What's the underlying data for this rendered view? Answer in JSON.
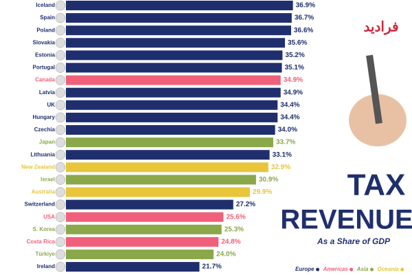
{
  "chart_data": {
    "type": "bar",
    "orientation": "horizontal",
    "title": "TAX",
    "title_line2": "REVENUE",
    "subtitle": "As a Share of GDP",
    "brand": "فرادید",
    "categories": [
      "Iceland",
      "Spain",
      "Poland",
      "Slovakia",
      "Estonia",
      "Portugal",
      "Canada",
      "Latvia",
      "UK",
      "Hungary",
      "Czechia",
      "Japan",
      "Lithuania",
      "New Zealand",
      "Israel",
      "Australia",
      "Switzerland",
      "USA",
      "S. Korea",
      "Costa Rica",
      "Türkiye",
      "Ireland"
    ],
    "values": [
      36.9,
      36.7,
      36.6,
      35.6,
      35.2,
      35.1,
      34.9,
      34.9,
      34.4,
      34.4,
      34.0,
      33.7,
      33.1,
      32.9,
      30.9,
      29.9,
      27.2,
      25.6,
      25.3,
      24.8,
      24.0,
      21.7
    ],
    "value_labels": [
      "36.9%",
      "36.7%",
      "36.6%",
      "35.6%",
      "35.2%",
      "35.1%",
      "34.9%",
      "34.9%",
      "34.4%",
      "34.4%",
      "34.0%",
      "33.7%",
      "33.1%",
      "32.9%",
      "30.9%",
      "29.9%",
      "27.2%",
      "25.6%",
      "25.3%",
      "24.8%",
      "24.0%",
      "21.7%"
    ],
    "colors": [
      "#1f2f6e",
      "#1f2f6e",
      "#1f2f6e",
      "#1f2f6e",
      "#1f2f6e",
      "#1f2f6e",
      "#f0607a",
      "#1f2f6e",
      "#1f2f6e",
      "#1f2f6e",
      "#1f2f6e",
      "#8aa84a",
      "#1f2f6e",
      "#e8c53a",
      "#8aa84a",
      "#e8c53a",
      "#1f2f6e",
      "#f0607a",
      "#8aa84a",
      "#f0607a",
      "#8aa84a",
      "#1f2f6e"
    ],
    "legend": [
      {
        "name": "Europe",
        "color": "#1f2f6e"
      },
      {
        "name": "Americas",
        "color": "#f0607a"
      },
      {
        "name": "Asia",
        "color": "#8aa84a"
      },
      {
        "name": "Oceania",
        "color": "#e8c53a"
      }
    ],
    "xlim": [
      0,
      37.5
    ]
  }
}
